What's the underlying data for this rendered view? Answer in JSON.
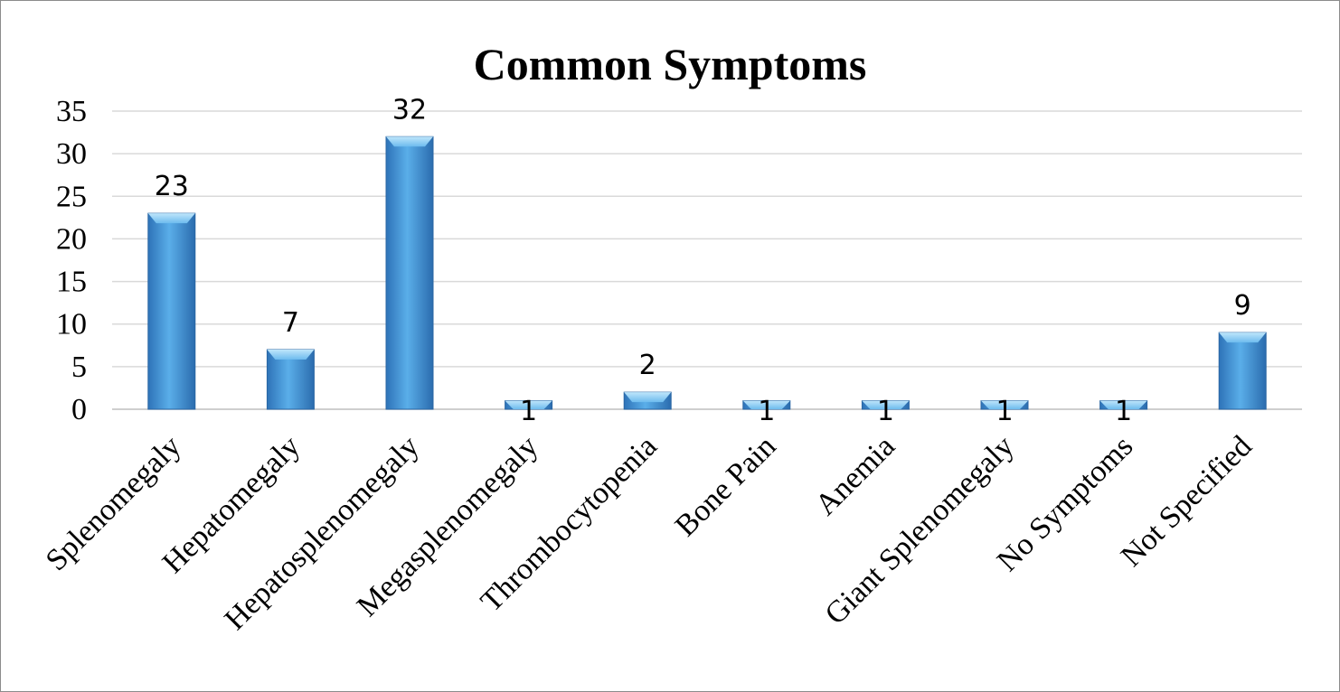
{
  "chart_data": {
    "type": "bar",
    "title": "Common Symptoms",
    "xlabel": "",
    "ylabel": "",
    "categories": [
      "Splenomegaly",
      "Hepatomegaly",
      "Hepatosplenomegaly",
      "Megasplenomegaly",
      "Thrombocytopenia",
      "Bone Pain",
      "Anemia",
      "Giant Splenomegaly",
      "No Symptoms",
      "Not Specified"
    ],
    "values": [
      23,
      7,
      32,
      1,
      2,
      1,
      1,
      1,
      1,
      9
    ],
    "ylim": [
      0,
      35
    ],
    "yticks": [
      0,
      5,
      10,
      15,
      20,
      25,
      30,
      35
    ],
    "grid": true,
    "legend": "none",
    "bar_color": "#3d8fd9",
    "bar_highlight": "#8fcdf5"
  }
}
